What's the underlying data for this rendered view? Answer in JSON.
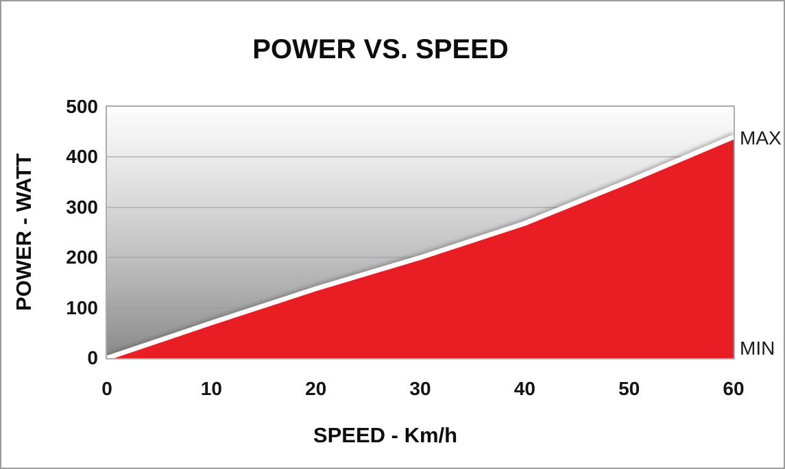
{
  "chart_data": {
    "type": "area",
    "title": "POWER VS. SPEED",
    "xlabel": "SPEED - Km/h",
    "ylabel": "POWER - WATT",
    "x": [
      0,
      10,
      20,
      30,
      40,
      50,
      60
    ],
    "series": [
      {
        "name": "POWER",
        "values": [
          0,
          70,
          138,
          200,
          268,
          352,
          440
        ]
      }
    ],
    "xlim": [
      0,
      60
    ],
    "ylim": [
      0,
      500
    ],
    "x_ticks": [
      "0",
      "10",
      "20",
      "30",
      "40",
      "50",
      "60"
    ],
    "y_ticks": [
      "0",
      "100",
      "200",
      "300",
      "400",
      "500"
    ],
    "grid": "horizontal gridlines every 100 W",
    "legend": "none",
    "annotations": [
      {
        "label": "MAX",
        "position": "right end of curve",
        "approx_value_watt": 440
      },
      {
        "label": "MIN",
        "position": "bottom right of area",
        "approx_value_watt": 0
      }
    ],
    "colors": {
      "area_fill": "#E91E25",
      "curve_line": "#FFFFFF",
      "plot_gradient_top": "#FDFDFD",
      "plot_gradient_bottom": "#8A8A8A",
      "gridline": "#9E9E9E",
      "plot_border": "#ACACAC",
      "outer_border": "#9B9B9B",
      "text": "#111111"
    }
  }
}
